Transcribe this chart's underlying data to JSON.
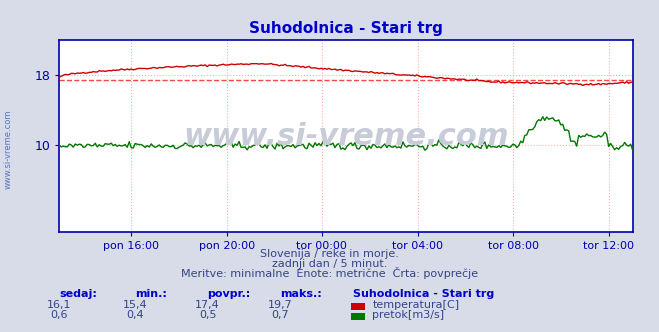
{
  "title": "Suhodolnica - Stari trg",
  "title_color": "#0000cc",
  "bg_color": "#d8dce8",
  "plot_bg_color": "#ffffff",
  "watermark": "www.si-vreme.com",
  "watermark_color": "#c8ccd8",
  "grid_color": "#ffaaaa",
  "grid_style": ":",
  "xticklabels": [
    "pon 16:00",
    "pon 20:00",
    "tor 00:00",
    "tor 04:00",
    "tor 08:00",
    "tor 12:00"
  ],
  "xtick_positions": [
    0.125,
    0.292,
    0.458,
    0.625,
    0.792,
    0.958
  ],
  "ylim": [
    0,
    22
  ],
  "yticks": [
    10,
    18
  ],
  "temp_min": 15.4,
  "temp_max": 19.7,
  "temp_avg": 17.4,
  "temp_current": 16.1,
  "flow_min": 0.4,
  "flow_max": 0.7,
  "flow_avg": 0.5,
  "flow_current": 0.6,
  "temp_color": "#cc0000",
  "flow_color": "#007700",
  "avg_line_color": "#ff4444",
  "subtitle1": "Slovenija / reke in morje.",
  "subtitle2": "zadnji dan / 5 minut.",
  "subtitle3": "Meritve: minimalne  Enote: metrične  Črta: povprečje",
  "legend_title": "Suhodolnica - Stari trg",
  "label_sedaj": "sedaj:",
  "label_min": "min.:",
  "label_povpr": "povpr.:",
  "label_maks": "maks.:",
  "legend_temp": "temperatura[C]",
  "legend_flow": "pretok[m3/s]"
}
